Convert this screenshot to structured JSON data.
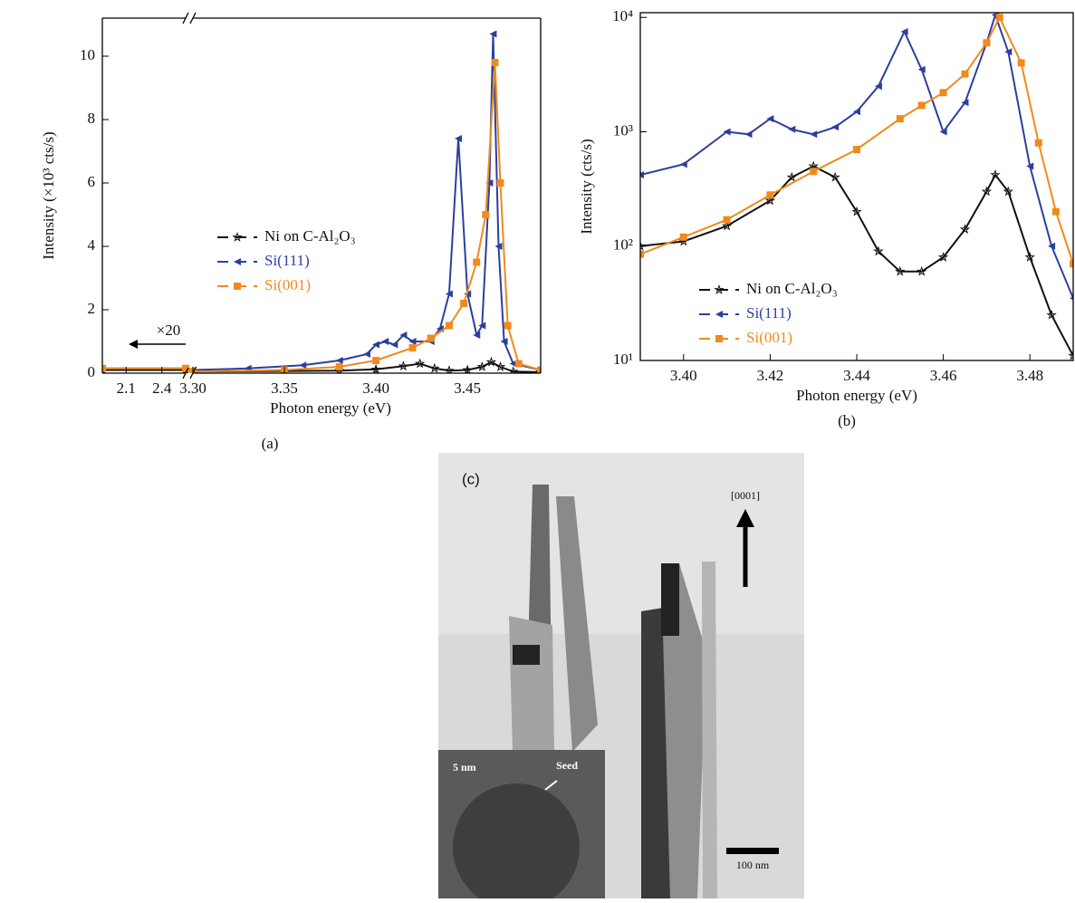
{
  "chart_data": [
    {
      "type": "line",
      "caption": "(a)",
      "x_label": "Photon energy (eV)",
      "y_label": "Intensity (×10³ cts/s)",
      "xlim": [
        1.9,
        3.49
      ],
      "x_break": [
        2.6,
        3.3
      ],
      "xticks": [
        2.1,
        2.4,
        {
          "value": 3.3,
          "label": "3.30"
        },
        3.35,
        {
          "value": 3.4,
          "label": "3.40"
        },
        3.45
      ],
      "ylim": [
        0,
        11.2
      ],
      "yticks": [
        0,
        2,
        4,
        6,
        8,
        10
      ],
      "legend": "center-left",
      "annotation": "×20",
      "series": [
        {
          "name": "Ni on C-Al₂O₃",
          "color": "#111111",
          "marker": "star",
          "x": [
            1.9,
            2.6,
            null,
            3.3,
            3.38,
            3.4,
            3.415,
            3.424,
            3.432,
            3.44,
            3.45,
            3.458,
            3.463,
            3.468,
            3.475,
            3.49
          ],
          "values": [
            0.1,
            0.1,
            null,
            0.05,
            0.08,
            0.12,
            0.22,
            0.3,
            0.15,
            0.08,
            0.1,
            0.2,
            0.35,
            0.2,
            0.05,
            0.03
          ]
        },
        {
          "name": "Si(111)",
          "color": "#2b3f9e",
          "marker": "triangle-left",
          "x": [
            1.9,
            2.6,
            null,
            3.3,
            3.33,
            3.36,
            3.38,
            3.395,
            3.4,
            3.405,
            3.41,
            3.415,
            3.42,
            3.43,
            3.435,
            3.44,
            3.445,
            3.45,
            3.455,
            3.458,
            3.462,
            3.464,
            3.467,
            3.47,
            3.475,
            3.49
          ],
          "values": [
            0.15,
            0.15,
            null,
            0.1,
            0.15,
            0.25,
            0.4,
            0.6,
            0.9,
            1.0,
            0.9,
            1.2,
            1.0,
            1.0,
            1.4,
            2.5,
            7.4,
            2.5,
            1.2,
            1.5,
            6.0,
            10.7,
            4.0,
            1.0,
            0.3,
            0.1
          ]
        },
        {
          "name": "Si(001)",
          "color": "#f08a1c",
          "marker": "square",
          "x": [
            1.9,
            2.6,
            null,
            3.3,
            3.35,
            3.38,
            3.4,
            3.42,
            3.43,
            3.44,
            3.448,
            3.455,
            3.46,
            3.465,
            3.468,
            3.472,
            3.478,
            3.49
          ],
          "values": [
            0.15,
            0.15,
            null,
            0.05,
            0.1,
            0.2,
            0.4,
            0.8,
            1.1,
            1.5,
            2.2,
            3.5,
            5.0,
            9.8,
            6.0,
            1.5,
            0.3,
            0.1
          ]
        }
      ]
    },
    {
      "type": "line",
      "caption": "(b)",
      "x_label": "Photon energy (eV)",
      "y_label": "Intensity (cts/s)",
      "xlim": [
        3.39,
        3.49
      ],
      "xticks": [
        {
          "value": 3.4,
          "label": "3.40"
        },
        3.42,
        3.44,
        3.46,
        3.48
      ],
      "ylim": [
        10,
        11000
      ],
      "log_y": true,
      "yticks": [
        {
          "value": 10,
          "label": "10¹"
        },
        {
          "value": 100,
          "label": "10²"
        },
        {
          "value": 1000,
          "label": "10³"
        },
        {
          "value": 10000,
          "label": "10⁴"
        }
      ],
      "legend": "bottom-left",
      "series": [
        {
          "name": "Ni on C-Al₂O₃",
          "color": "#111111",
          "marker": "star",
          "x": [
            3.39,
            3.4,
            3.41,
            3.42,
            3.425,
            3.43,
            3.435,
            3.44,
            3.445,
            3.45,
            3.455,
            3.46,
            3.465,
            3.47,
            3.472,
            3.475,
            3.48,
            3.485,
            3.49
          ],
          "values": [
            100,
            110,
            150,
            250,
            400,
            500,
            400,
            200,
            90,
            60,
            60,
            80,
            140,
            300,
            420,
            300,
            80,
            25,
            11
          ]
        },
        {
          "name": "Si(111)",
          "color": "#2b3f9e",
          "marker": "triangle-left",
          "x": [
            3.39,
            3.4,
            3.41,
            3.415,
            3.42,
            3.425,
            3.43,
            3.435,
            3.44,
            3.445,
            3.451,
            3.455,
            3.46,
            3.465,
            3.47,
            3.472,
            3.475,
            3.48,
            3.485,
            3.49
          ],
          "values": [
            420,
            520,
            1000,
            950,
            1300,
            1050,
            950,
            1100,
            1500,
            2500,
            7500,
            3500,
            1000,
            1800,
            6000,
            10500,
            5000,
            500,
            100,
            35
          ]
        },
        {
          "name": "Si(001)",
          "color": "#f08a1c",
          "marker": "square",
          "x": [
            3.39,
            3.4,
            3.41,
            3.42,
            3.43,
            3.44,
            3.45,
            3.455,
            3.46,
            3.465,
            3.47,
            3.473,
            3.478,
            3.482,
            3.486,
            3.49
          ],
          "values": [
            85,
            120,
            170,
            280,
            450,
            700,
            1300,
            1700,
            2200,
            3200,
            6000,
            10000,
            4000,
            800,
            200,
            70
          ]
        }
      ]
    }
  ],
  "image": {
    "caption": "(c)",
    "direction": "[0001]",
    "scale_bar": "100 nm",
    "inset_scale": "5 nm",
    "inset_label": "Seed"
  }
}
